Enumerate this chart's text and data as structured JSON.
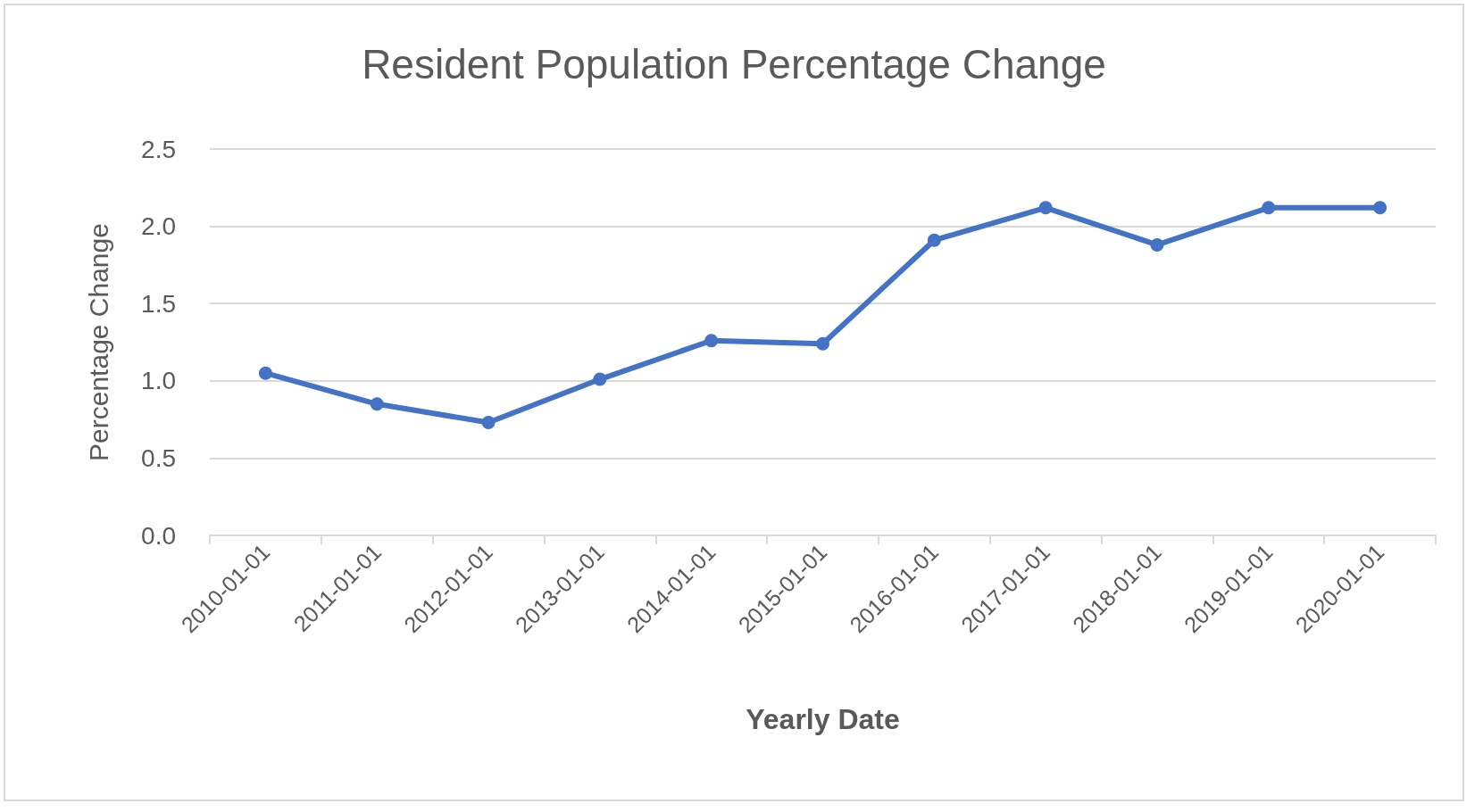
{
  "chart_data": {
    "type": "line",
    "title": "Resident Population Percentage Change",
    "xlabel": "Yearly Date",
    "ylabel": "Percentage Change",
    "categories": [
      "2010-01-01",
      "2011-01-01",
      "2012-01-01",
      "2013-01-01",
      "2014-01-01",
      "2015-01-01",
      "2016-01-01",
      "2017-01-01",
      "2018-01-01",
      "2019-01-01",
      "2020-01-01"
    ],
    "series": [
      {
        "color": "#4472c4",
        "values": [
          1.05,
          0.85,
          0.73,
          1.01,
          1.26,
          1.24,
          1.91,
          2.12,
          1.88,
          2.12,
          2.12
        ]
      }
    ],
    "ylim": [
      0,
      2.5
    ],
    "yticks": [
      {
        "value": 0,
        "label": "0.0"
      },
      {
        "value": 0.5,
        "label": "0.5"
      },
      {
        "value": 1,
        "label": "1.0"
      },
      {
        "value": 1.5,
        "label": "1.5"
      },
      {
        "value": 2,
        "label": "2.0"
      },
      {
        "value": 2.5,
        "label": "2.5"
      }
    ],
    "grid": "y",
    "marker": "circle",
    "line_style": "solid"
  }
}
